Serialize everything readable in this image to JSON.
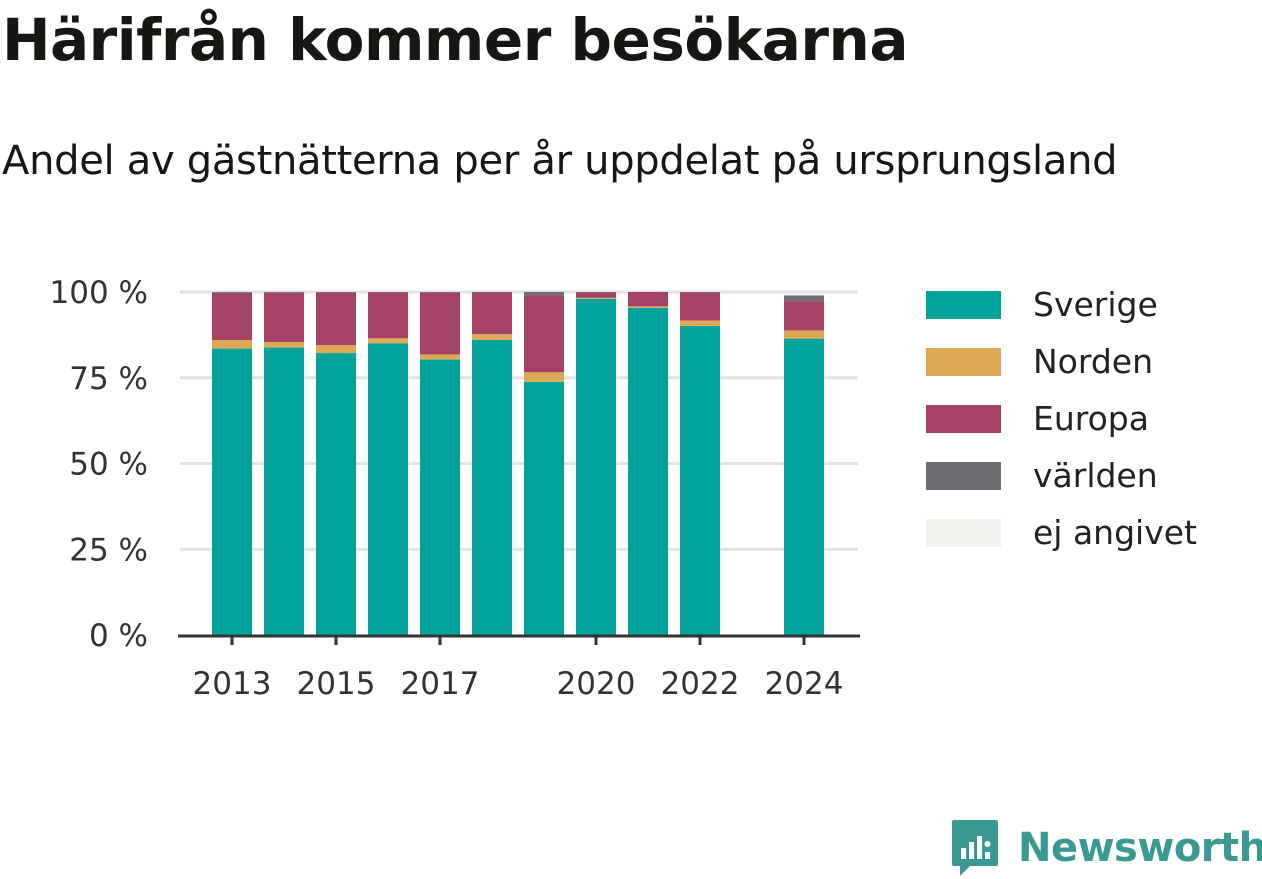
{
  "header": {
    "title": "Härifrån kommer besökarna",
    "subtitle": "Andel av gästnätterna per år uppdelat på ursprungsland"
  },
  "brand": {
    "name": "Newsworthy",
    "icon": "newsworthy-logo-icon"
  },
  "chart_data": {
    "type": "bar",
    "stacked": true,
    "x": [
      2013,
      2014,
      2015,
      2016,
      2017,
      2018,
      2019,
      2020,
      2021,
      2022,
      2023,
      2024
    ],
    "x_tick_labels": [
      "2013",
      "2015",
      "2017",
      "2020",
      "2022",
      "2024"
    ],
    "x_tick_values": [
      2013,
      2015,
      2017,
      2020,
      2022,
      2024
    ],
    "y_tick_labels": [
      "0 %",
      "25 %",
      "50 %",
      "75 %",
      "100 %"
    ],
    "y_tick_values": [
      0,
      25,
      50,
      75,
      100
    ],
    "ylim": [
      0,
      100
    ],
    "grid": true,
    "legend_position": "right",
    "series": [
      {
        "name": "Sverige",
        "color": "#00a39a",
        "values": [
          83.5,
          83.8,
          82.2,
          85.0,
          80.3,
          86.0,
          73.8,
          98.0,
          95.4,
          90.1,
          null,
          86.4
        ]
      },
      {
        "name": "Norden",
        "color": "#dcaa56",
        "values": [
          2.5,
          1.6,
          2.3,
          1.5,
          1.5,
          1.7,
          2.8,
          0.3,
          0.4,
          1.6,
          null,
          2.4
        ]
      },
      {
        "name": "Europa",
        "color": "#a54066",
        "values": [
          13.8,
          14.4,
          15.4,
          13.4,
          18.1,
          12.0,
          22.4,
          1.6,
          4.2,
          8.2,
          null,
          8.5
        ]
      },
      {
        "name": "världen",
        "color": "#6e6e73",
        "values": [
          0.2,
          0.2,
          0.1,
          0.1,
          0.1,
          0.3,
          1.0,
          0.1,
          0.0,
          0.1,
          null,
          1.7
        ]
      },
      {
        "name": "ej angivet",
        "color": "#f3f2ee",
        "values": [
          0.0,
          0.0,
          0.0,
          0.0,
          0.0,
          0.0,
          0.0,
          0.0,
          0.0,
          0.0,
          null,
          1.0
        ]
      }
    ]
  }
}
